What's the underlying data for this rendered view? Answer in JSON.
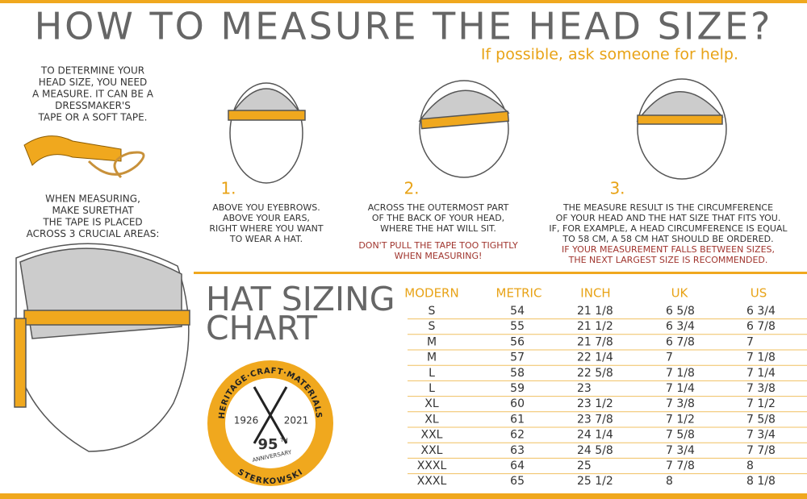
{
  "header": {
    "title": "HOW TO MEASURE THE HEAD SIZE?",
    "subtitle": "If possible, ask someone for help."
  },
  "intro": {
    "lines": [
      "TO DETERMINE YOUR",
      "HEAD SIZE, YOU NEED",
      "A MEASURE. IT CAN BE A",
      "DRESSMAKER'S",
      "TAPE OR A SOFT TAPE."
    ],
    "measuring_lines": [
      "WHEN MEASURING,",
      "MAKE SURETHAT",
      "THE TAPE IS PLACED",
      "ACROSS 3 CRUCIAL AREAS:"
    ]
  },
  "steps": [
    {
      "number": "1.",
      "lines": [
        "ABOVE YOU EYEBROWS.",
        "ABOVE YOUR EARS,",
        "RIGHT WHERE YOU WANT",
        "TO WEAR A HAT."
      ],
      "warning_lines": []
    },
    {
      "number": "2.",
      "lines": [
        "ACROSS THE OUTERMOST PART",
        "OF THE BACK OF YOUR HEAD,",
        "WHERE THE HAT WILL SIT."
      ],
      "warning_lines": [
        "DON'T PULL THE TAPE TOO TIGHTLY",
        "WHEN MEASURING!"
      ]
    },
    {
      "number": "3.",
      "lines": [
        "THE MEASURE RESULT IS THE CIRCUMFERENCE",
        "OF YOUR HEAD AND THE  HAT SIZE THAT FITS YOU.",
        "IF, FOR EXAMPLE, A HEAD CIRCUMFERENCE IS EQUAL",
        "TO 58 CM, A 58 CM HAT SHOULD BE ORDERED."
      ],
      "warning_lines": [
        "IF YOUR MEASUREMENT FALLS BETWEEN SIZES,",
        "THE NEXT LARGEST SIZE IS RECOMMENDED."
      ]
    }
  ],
  "sizing": {
    "title_lines": [
      "HAT SIZING",
      "CHART"
    ],
    "columns": [
      "MODERN",
      "METRIC",
      "INCH",
      "UK",
      "US"
    ],
    "rows": [
      [
        "S",
        54,
        "21 1/8",
        "6 5/8",
        "6 3/4"
      ],
      [
        "S",
        55,
        "21 1/2",
        "6 3/4",
        "6 7/8"
      ],
      [
        "M",
        56,
        "21 7/8",
        "6 7/8",
        "7"
      ],
      [
        "M",
        57,
        "22 1/4",
        "7",
        "7 1/8"
      ],
      [
        "L",
        58,
        "22 5/8",
        "7 1/8",
        "7 1/4"
      ],
      [
        "L",
        59,
        "23",
        "7 1/4",
        "7 3/8"
      ],
      [
        "XL",
        60,
        "23 1/2",
        "7 3/8",
        "7 1/2"
      ],
      [
        "XL",
        61,
        "23 7/8",
        "7 1/2",
        "7 5/8"
      ],
      [
        "XXL",
        62,
        "24 1/4",
        "7 5/8",
        "7 3/4"
      ],
      [
        "XXL",
        63,
        "24 5/8",
        "7 3/4",
        "7 7/8"
      ],
      [
        "XXXL",
        64,
        "25",
        "7 7/8",
        "8"
      ],
      [
        "XXXL",
        65,
        "25 1/2",
        "8",
        "8 1/8"
      ]
    ]
  },
  "badge": {
    "arc": "HERITAGE·CRAFT·MATERIALS",
    "years": [
      "1926",
      "2021"
    ],
    "number": "95",
    "suffix": "TH",
    "anniversary": "ANNIVERSARY",
    "brand": "STERKOWSKI"
  }
}
